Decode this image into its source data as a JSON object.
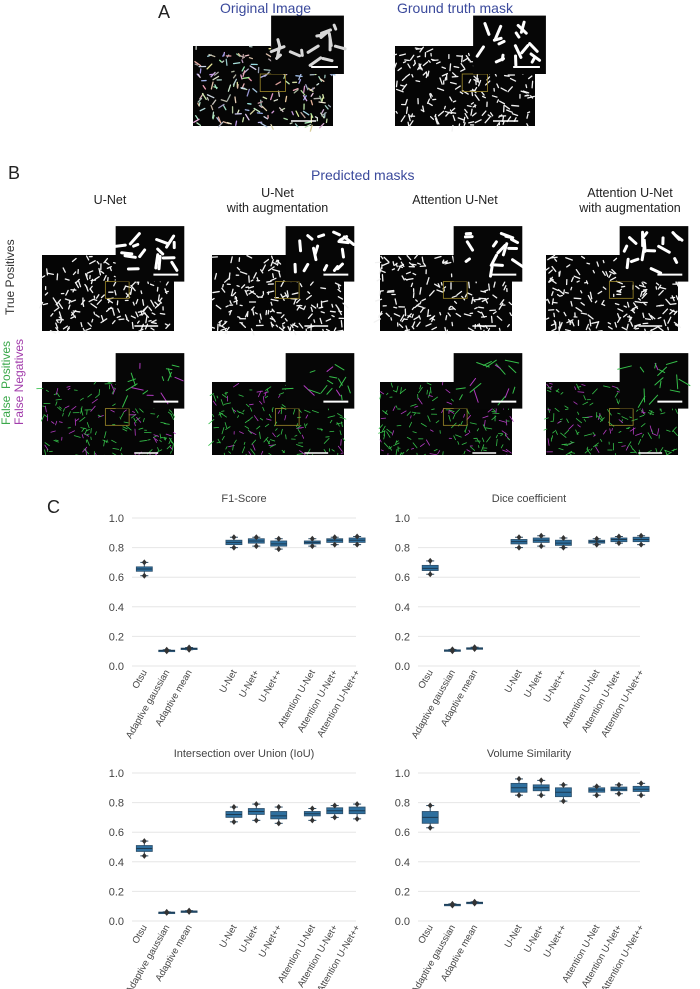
{
  "panelA": {
    "letter": "A",
    "original_title": "Original Image",
    "mask_title": "Ground truth mask"
  },
  "panelB": {
    "letter": "B",
    "predicted_title": "Predicted masks",
    "models": [
      "U-Net",
      "U-Net\nwith augmentation",
      "Attention U-Net",
      "Attention U-Net\nwith augmentation"
    ],
    "row_tp": "True Positives",
    "row_fp_word1": "False",
    "row_fp_word2": "Positives",
    "row_fn_word1": "False",
    "row_fn_word2": "Negatives"
  },
  "panelC": {
    "letter": "C"
  },
  "colors": {
    "box_fill": "#2e6f9e",
    "box_edge": "#2d4f6a",
    "grid": "#e6e6e6",
    "title_blue": "#3b4a9c",
    "tp_green": "#3aa84a",
    "fn_purple": "#a23cab"
  },
  "chart_data": [
    {
      "type": "box",
      "title": "F1-Score",
      "categories": [
        "Otsu",
        "Adaptive gaussian",
        "Adaptive mean",
        "U-Net",
        "U-Net+",
        "U-Net++",
        "Attention U-Net",
        "Attention U-Net+",
        "Attention U-Net++"
      ],
      "ylim": [
        0,
        1.0
      ],
      "yticks": [
        "0.0",
        "0.2",
        "0.4",
        "0.6",
        "0.8",
        "1.0"
      ],
      "boxes": [
        {
          "min": 0.61,
          "q1": 0.64,
          "median": 0.655,
          "q3": 0.67,
          "max": 0.7
        },
        {
          "min": 0.1,
          "q1": 0.103,
          "median": 0.105,
          "q3": 0.107,
          "max": 0.11
        },
        {
          "min": 0.11,
          "q1": 0.115,
          "median": 0.118,
          "q3": 0.121,
          "max": 0.125
        },
        {
          "min": 0.8,
          "q1": 0.82,
          "median": 0.835,
          "q3": 0.85,
          "max": 0.87
        },
        {
          "min": 0.81,
          "q1": 0.83,
          "median": 0.845,
          "q3": 0.86,
          "max": 0.87
        },
        {
          "min": 0.79,
          "q1": 0.81,
          "median": 0.825,
          "q3": 0.845,
          "max": 0.86
        },
        {
          "min": 0.81,
          "q1": 0.825,
          "median": 0.835,
          "q3": 0.845,
          "max": 0.86
        },
        {
          "min": 0.82,
          "q1": 0.835,
          "median": 0.85,
          "q3": 0.86,
          "max": 0.87
        },
        {
          "min": 0.82,
          "q1": 0.835,
          "median": 0.85,
          "q3": 0.865,
          "max": 0.875
        }
      ]
    },
    {
      "type": "box",
      "title": "Dice coefficient",
      "categories": [
        "Otsu",
        "Adaptive gaussian",
        "Adaptive mean",
        "U-Net",
        "U-Net+",
        "U-Net++",
        "Attention U-Net",
        "Attention U-Net+",
        "Attention U-Net++"
      ],
      "ylim": [
        0,
        1.0
      ],
      "yticks": [
        "0.0",
        "0.2",
        "0.4",
        "0.6",
        "0.8",
        "1.0"
      ],
      "boxes": [
        {
          "min": 0.62,
          "q1": 0.645,
          "median": 0.66,
          "q3": 0.68,
          "max": 0.71
        },
        {
          "min": 0.1,
          "q1": 0.103,
          "median": 0.106,
          "q3": 0.109,
          "max": 0.112
        },
        {
          "min": 0.115,
          "q1": 0.118,
          "median": 0.12,
          "q3": 0.123,
          "max": 0.127
        },
        {
          "min": 0.8,
          "q1": 0.825,
          "median": 0.84,
          "q3": 0.855,
          "max": 0.87
        },
        {
          "min": 0.81,
          "q1": 0.835,
          "median": 0.85,
          "q3": 0.865,
          "max": 0.88
        },
        {
          "min": 0.8,
          "q1": 0.815,
          "median": 0.83,
          "q3": 0.85,
          "max": 0.865
        },
        {
          "min": 0.82,
          "q1": 0.83,
          "median": 0.84,
          "q3": 0.85,
          "max": 0.86
        },
        {
          "min": 0.83,
          "q1": 0.84,
          "median": 0.855,
          "q3": 0.865,
          "max": 0.875
        },
        {
          "min": 0.82,
          "q1": 0.84,
          "median": 0.855,
          "q3": 0.87,
          "max": 0.88
        }
      ]
    },
    {
      "type": "box",
      "title": "Intersection over Union (IoU)",
      "categories": [
        "Otsu",
        "Adaptive gaussian",
        "Adaptive mean",
        "U-Net",
        "U-Net+",
        "U-Net++",
        "Attention U-Net",
        "Attention U-Net+",
        "Attention U-Net++"
      ],
      "ylim": [
        0,
        1.0
      ],
      "yticks": [
        "0.0",
        "0.2",
        "0.4",
        "0.6",
        "0.8",
        "1.0"
      ],
      "boxes": [
        {
          "min": 0.44,
          "q1": 0.47,
          "median": 0.49,
          "q3": 0.51,
          "max": 0.54
        },
        {
          "min": 0.055,
          "q1": 0.057,
          "median": 0.058,
          "q3": 0.06,
          "max": 0.062
        },
        {
          "min": 0.062,
          "q1": 0.064,
          "median": 0.066,
          "q3": 0.068,
          "max": 0.07
        },
        {
          "min": 0.67,
          "q1": 0.7,
          "median": 0.72,
          "q3": 0.74,
          "max": 0.77
        },
        {
          "min": 0.68,
          "q1": 0.72,
          "median": 0.74,
          "q3": 0.76,
          "max": 0.79
        },
        {
          "min": 0.66,
          "q1": 0.69,
          "median": 0.71,
          "q3": 0.74,
          "max": 0.77
        },
        {
          "min": 0.68,
          "q1": 0.71,
          "median": 0.725,
          "q3": 0.74,
          "max": 0.76
        },
        {
          "min": 0.7,
          "q1": 0.725,
          "median": 0.745,
          "q3": 0.765,
          "max": 0.78
        },
        {
          "min": 0.69,
          "q1": 0.725,
          "median": 0.745,
          "q3": 0.77,
          "max": 0.79
        }
      ]
    },
    {
      "type": "box",
      "title": "Volume Similarity",
      "categories": [
        "Otsu",
        "Adaptive gaussian",
        "Adaptive mean",
        "U-Net",
        "U-Net+",
        "U-Net++",
        "Attention U-Net",
        "Attention U-Net+",
        "Attention U-Net++"
      ],
      "ylim": [
        0,
        1.0
      ],
      "yticks": [
        "0.0",
        "0.2",
        "0.4",
        "0.6",
        "0.8",
        "1.0"
      ],
      "boxes": [
        {
          "min": 0.63,
          "q1": 0.66,
          "median": 0.7,
          "q3": 0.74,
          "max": 0.78
        },
        {
          "min": 0.105,
          "q1": 0.108,
          "median": 0.11,
          "q3": 0.113,
          "max": 0.116
        },
        {
          "min": 0.118,
          "q1": 0.121,
          "median": 0.124,
          "q3": 0.127,
          "max": 0.13
        },
        {
          "min": 0.85,
          "q1": 0.87,
          "median": 0.9,
          "q3": 0.93,
          "max": 0.96
        },
        {
          "min": 0.85,
          "q1": 0.88,
          "median": 0.9,
          "q3": 0.92,
          "max": 0.95
        },
        {
          "min": 0.81,
          "q1": 0.84,
          "median": 0.87,
          "q3": 0.9,
          "max": 0.92
        },
        {
          "min": 0.85,
          "q1": 0.87,
          "median": 0.885,
          "q3": 0.9,
          "max": 0.91
        },
        {
          "min": 0.86,
          "q1": 0.88,
          "median": 0.89,
          "q3": 0.905,
          "max": 0.92
        },
        {
          "min": 0.85,
          "q1": 0.875,
          "median": 0.89,
          "q3": 0.91,
          "max": 0.93
        }
      ]
    }
  ]
}
